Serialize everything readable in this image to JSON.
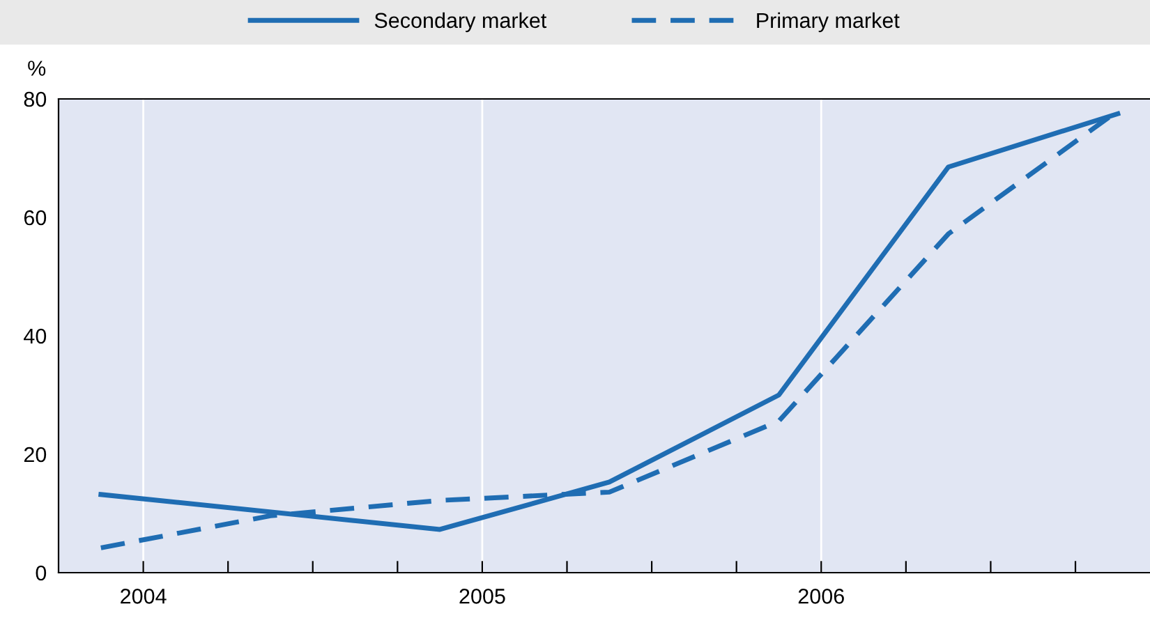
{
  "chart_data": {
    "type": "line",
    "ylabel": "%",
    "legend": "top",
    "grid": "x",
    "xlim": [
      2003.75,
      2006.97
    ],
    "ylim": [
      0,
      80
    ],
    "xticks": [
      2004,
      {
        "value": 2004.25,
        "label": null
      },
      {
        "value": 2004.5,
        "label": null
      },
      {
        "value": 2004.75,
        "label": null
      },
      2005,
      {
        "value": 2005.25,
        "label": null
      },
      {
        "value": 2005.5,
        "label": null
      },
      {
        "value": 2005.75,
        "label": null
      },
      2006,
      {
        "value": 2006.25,
        "label": null
      },
      {
        "value": 2006.5,
        "label": null
      },
      {
        "value": 2006.75,
        "label": null
      }
    ],
    "yticks": [
      0,
      20,
      40,
      60,
      80
    ],
    "series": [
      {
        "name": "Secondary market",
        "color": "#1f6db3",
        "line_style": "solid",
        "x": [
          2003.875,
          2004.875,
          2005.375,
          2005.875,
          2006.375,
          2006.875
        ],
        "values": [
          13.2,
          7.3,
          15.3,
          30,
          68.5,
          77.5
        ]
      },
      {
        "name": "Primary market",
        "color": "#1f6db3",
        "line_style": "dashed",
        "x": [
          2003.875,
          2004.375,
          2004.875,
          2005.375,
          2005.875,
          2006.375,
          2006.875
        ],
        "values": [
          4.2,
          9.6,
          12.2,
          13.6,
          25.6,
          57.2,
          78
        ]
      }
    ]
  }
}
